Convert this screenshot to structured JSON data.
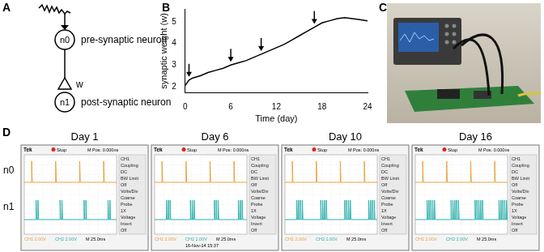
{
  "panel_labels": [
    "A",
    "B",
    "C",
    "D"
  ],
  "diagram": {
    "input_node": "n0",
    "input_label": "pre-synaptic neuron",
    "output_node": "n1",
    "output_label": "post-synaptic neuron",
    "weight": "w"
  },
  "chart_data": {
    "type": "line",
    "x_label": "Time (day)",
    "y_label": "synaptic weight (w)",
    "x": [
      0,
      0.5,
      1,
      2,
      3,
      4,
      5,
      6,
      7,
      8,
      9,
      10,
      11,
      12,
      13,
      14,
      15,
      16,
      17,
      18,
      19,
      20,
      21,
      22,
      23,
      24
    ],
    "values": [
      2.05,
      2.3,
      2.4,
      2.5,
      2.65,
      2.75,
      2.85,
      3.0,
      3.1,
      3.2,
      3.35,
      3.5,
      3.65,
      3.8,
      3.95,
      4.15,
      4.35,
      4.55,
      4.75,
      4.95,
      5.05,
      5.15,
      5.2,
      5.15,
      5.1,
      5.05
    ],
    "color": "#000000",
    "xlim": [
      0,
      24
    ],
    "xticks": [
      0,
      6,
      12,
      18,
      24
    ],
    "ylim": [
      1.7,
      5.6
    ],
    "yticks": [
      2,
      3,
      4,
      5
    ],
    "grid": false,
    "arrow_days": [
      0.5,
      6,
      10,
      17
    ]
  },
  "scope": {
    "row_labels": [
      "n0",
      "n1"
    ],
    "colors": [
      "#e8a33c",
      "#2fb2ad"
    ],
    "header": [
      "Tek",
      "Stop",
      "M Pos: 0.000ns"
    ],
    "menu": [
      "CH1",
      "Coupling",
      "DC",
      "BW Limit",
      "Off",
      "Volts/Div",
      "Coarse",
      "Probe",
      "1X",
      "Voltage",
      "Invert",
      "Off"
    ],
    "footer": [
      "CH1 2.00V",
      "CH2 2.00V",
      "M 25.0ms"
    ],
    "screen_ms": 250,
    "n1_delay_ms": 12,
    "n1_spike_interval_ms": 5,
    "screens": [
      {
        "title": "Day 1",
        "n0_spikes_ms": [
          20,
          85,
          150,
          215
        ],
        "n1_burst_size": 2
      },
      {
        "title": "Day 6",
        "n0_spikes_ms": [
          20,
          85,
          150,
          215
        ],
        "n1_burst_size": 3,
        "timestamp": "16-Nov-14 15:37"
      },
      {
        "title": "Day 10",
        "n0_spikes_ms": [
          20,
          85,
          150,
          215
        ],
        "n1_burst_size": 4
      },
      {
        "title": "Day 16",
        "n0_spikes_ms": [
          20,
          85,
          150,
          215
        ],
        "n1_burst_size": 5
      }
    ]
  }
}
